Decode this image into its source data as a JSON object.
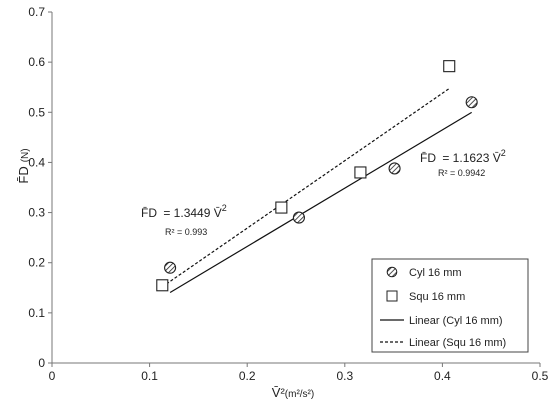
{
  "chart_data": {
    "type": "scatter",
    "xlabel": "V̄²",
    "xlabel_unit": "(m²/s²)",
    "ylabel": "F̄D",
    "ylabel_unit": "(N)",
    "xlim": [
      0,
      0.5
    ],
    "ylim": [
      0,
      0.7
    ],
    "xticks": [
      "0",
      "0.1",
      "0.2",
      "0.3",
      "0.4",
      "0.5"
    ],
    "yticks": [
      "0",
      "0.1",
      "0.2",
      "0.3",
      "0.4",
      "0.5",
      "0.6",
      "0.7"
    ],
    "xtick_values": [
      0,
      0.1,
      0.2,
      0.3,
      0.4,
      0.5
    ],
    "ytick_values": [
      0,
      0.1,
      0.2,
      0.3,
      0.4,
      0.5,
      0.6,
      0.7
    ],
    "grid": false,
    "legend_position": "bottom-right",
    "series": [
      {
        "name": "Cyl 16 mm",
        "marker": "hatched-circle",
        "points": [
          [
            0.121,
            0.19
          ],
          [
            0.253,
            0.29
          ],
          [
            0.351,
            0.388
          ],
          [
            0.43,
            0.52
          ]
        ]
      },
      {
        "name": "Squ 16 mm",
        "marker": "square",
        "points": [
          [
            0.113,
            0.155
          ],
          [
            0.235,
            0.31
          ],
          [
            0.316,
            0.38
          ],
          [
            0.407,
            0.592
          ]
        ]
      }
    ],
    "fits": [
      {
        "name": "Linear (Cyl 16 mm)",
        "style": "solid",
        "x_range": [
          0.121,
          0.43
        ],
        "slope": 1.1623
      },
      {
        "name": "Linear (Squ 16 mm)",
        "style": "dashed",
        "x_range": [
          0.113,
          0.407
        ],
        "slope": 1.3449
      }
    ],
    "annotations": [
      {
        "lhs": "F̄D",
        "equals": "= 1.1623 ",
        "var": "V̄",
        "sup": "2",
        "r2": "R² = 0.9942"
      },
      {
        "lhs": "F̄D",
        "equals": "= 1.3449 ",
        "var": "V̄",
        "sup": "2",
        "r2": "R² = 0.993"
      }
    ]
  }
}
